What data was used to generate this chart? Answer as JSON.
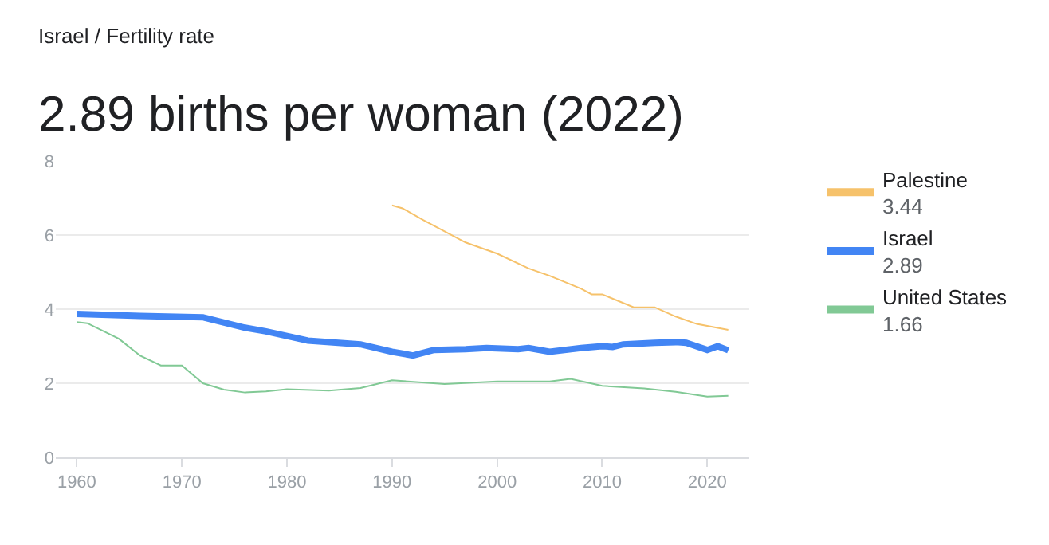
{
  "chart_data": {
    "type": "line",
    "subtitle": "Israel / Fertility rate",
    "title": "2.89 births per woman (2022)",
    "xlim": [
      1958,
      2024
    ],
    "xticks": [
      1960,
      1970,
      1980,
      1990,
      2000,
      2010,
      2020
    ],
    "ylim": [
      0,
      8
    ],
    "yticks": [
      0,
      2,
      4,
      6,
      8
    ],
    "grid": "y",
    "annotations": [
      "3.44",
      "2.89",
      "1.66"
    ],
    "legend": "top right",
    "marker": "none",
    "line_style": "solid",
    "series": [
      {
        "name": "Palestine",
        "color": "#f6c26b",
        "x": [
          1990,
          1991,
          1993,
          1997,
          2000,
          2003,
          2005,
          2008,
          2009,
          2010,
          2013,
          2015,
          2017,
          2019,
          2022
        ],
        "values": [
          6.8,
          6.72,
          6.4,
          5.8,
          5.5,
          5.1,
          4.9,
          4.55,
          4.4,
          4.4,
          4.05,
          4.05,
          3.8,
          3.6,
          3.44
        ]
      },
      {
        "name": "Israel",
        "color": "#4285f4",
        "x": [
          1960,
          1966,
          1972,
          1976,
          1978,
          1982,
          1987,
          1990,
          1992,
          1994,
          1997,
          1999,
          2002,
          2003,
          2005,
          2008,
          2010,
          2011,
          2012,
          2015,
          2017,
          2018,
          2020,
          2021,
          2022
        ],
        "values": [
          3.87,
          3.82,
          3.78,
          3.5,
          3.4,
          3.15,
          3.05,
          2.85,
          2.75,
          2.9,
          2.92,
          2.95,
          2.92,
          2.95,
          2.85,
          2.95,
          3.0,
          2.98,
          3.05,
          3.09,
          3.11,
          3.09,
          2.9,
          3.0,
          2.89
        ]
      },
      {
        "name": "United States",
        "color": "#81c995",
        "x": [
          1960,
          1961,
          1964,
          1966,
          1968,
          1970,
          1972,
          1974,
          1976,
          1978,
          1980,
          1984,
          1987,
          1990,
          1995,
          2000,
          2005,
          2007,
          2010,
          2014,
          2017,
          2020,
          2022
        ],
        "values": [
          3.65,
          3.62,
          3.2,
          2.75,
          2.48,
          2.48,
          2.0,
          1.83,
          1.75,
          1.78,
          1.84,
          1.8,
          1.87,
          2.08,
          1.98,
          2.05,
          2.05,
          2.12,
          1.93,
          1.86,
          1.77,
          1.64,
          1.66
        ]
      }
    ]
  }
}
